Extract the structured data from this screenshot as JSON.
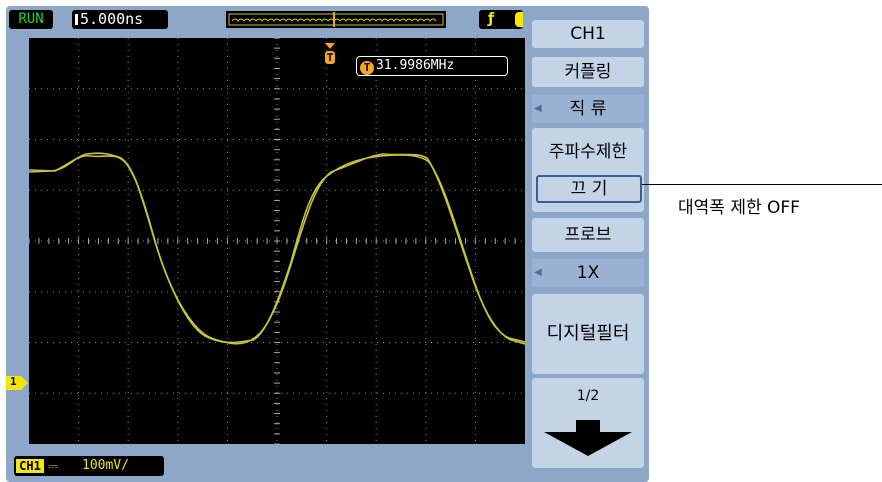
{
  "status": {
    "run_label": "RUN",
    "timebase": "5.000ns"
  },
  "measurement": {
    "icon": "T",
    "frequency": "31.9986MHz"
  },
  "channel_bar": {
    "ch_label": "CH1",
    "coupling_symbol": "⎓",
    "scale": "100mV/"
  },
  "ground_marker": {
    "label": "1"
  },
  "trigger": {
    "marker_label": "T"
  },
  "menu": {
    "title": "CH1",
    "coupling": {
      "label": "커플링",
      "value": "직  류"
    },
    "bandwidth": {
      "label": "주파수제한",
      "value": "끄  기"
    },
    "probe": {
      "label": "프로브",
      "value": "1X"
    },
    "filter": {
      "label": "디지털필터"
    },
    "page": {
      "label": "1/2"
    }
  },
  "callout": {
    "text": "대역폭 제한 OFF"
  },
  "colors": {
    "trace": "#c8c23c",
    "screen": "#000000",
    "bezel": "#8ea6c8",
    "menu_button": "#c3d4e6",
    "menu_value": "#9ab2d2",
    "channel": "#f2e60c"
  }
}
